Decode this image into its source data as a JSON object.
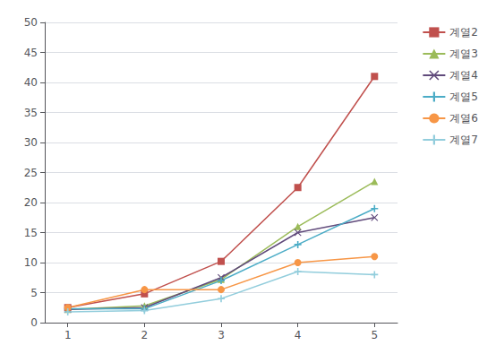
{
  "chart_data": {
    "type": "line",
    "x": [
      1,
      2,
      3,
      4,
      5
    ],
    "series": [
      {
        "name": "계열2",
        "values": [
          2.5,
          4.8,
          10.2,
          22.5,
          41.0
        ],
        "color": "#C0504D",
        "marker": "square",
        "line_style": "solid"
      },
      {
        "name": "계열3",
        "values": [
          2.2,
          2.8,
          7.2,
          16.0,
          23.5
        ],
        "color": "#9BBB59",
        "marker": "triangle",
        "line_style": "solid"
      },
      {
        "name": "계열4",
        "values": [
          2.2,
          2.5,
          7.5,
          15.0,
          17.5
        ],
        "color": "#604A7B",
        "marker": "x",
        "line_style": "solid"
      },
      {
        "name": "계열5",
        "values": [
          2.3,
          2.3,
          7.0,
          13.0,
          19.0
        ],
        "color": "#4BACC6",
        "marker": "plus",
        "line_style": "solid"
      },
      {
        "name": "계열6",
        "values": [
          2.5,
          5.5,
          5.5,
          10.0,
          11.0
        ],
        "color": "#F79646",
        "marker": "circle",
        "line_style": "solid"
      },
      {
        "name": "계열7",
        "values": [
          1.8,
          2.0,
          4.0,
          8.5,
          8.0
        ],
        "color": "#92CDDC",
        "marker": "plus",
        "line_style": "solid"
      }
    ],
    "xlim": [
      0.7,
      5.3
    ],
    "ylim": [
      0,
      50
    ],
    "xticks": [
      1,
      2,
      3,
      4,
      5
    ],
    "yticks": [
      0,
      5,
      10,
      15,
      20,
      25,
      30,
      35,
      40,
      45,
      50
    ],
    "grid": true,
    "legend": "right"
  }
}
